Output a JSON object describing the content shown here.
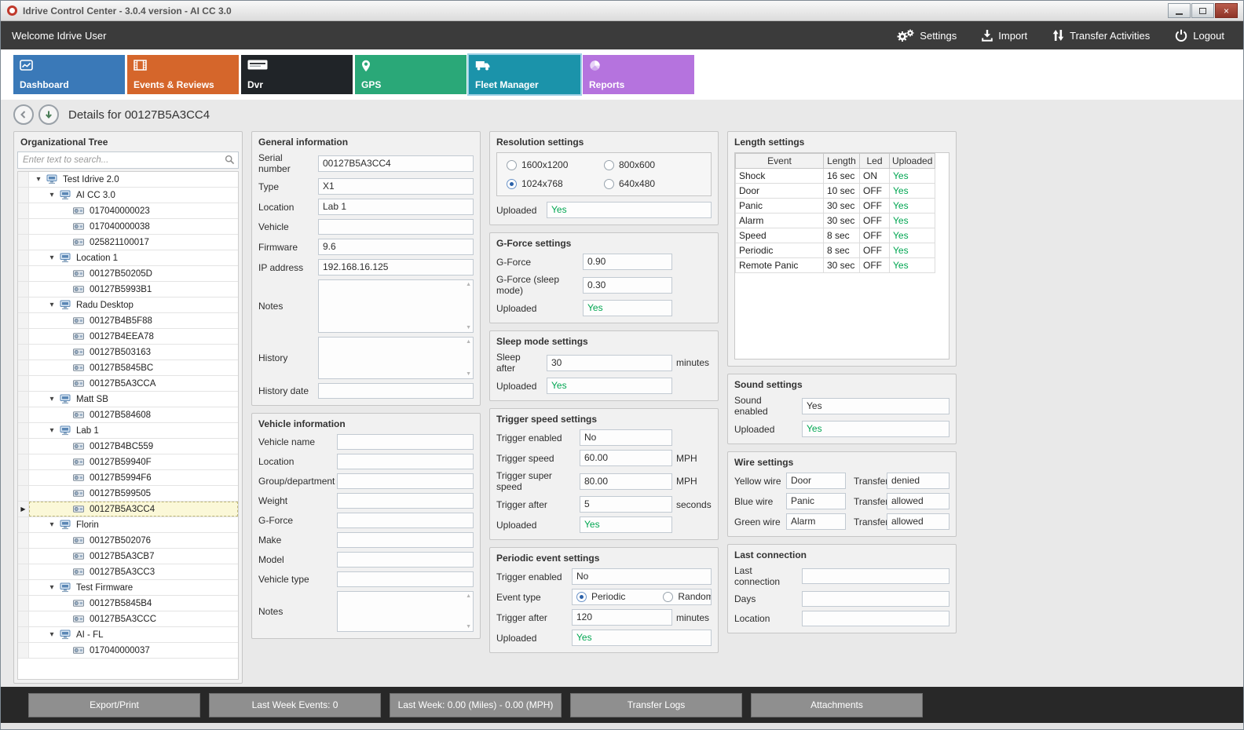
{
  "window": {
    "title": "Idrive Control Center - 3.0.4 version - AI CC 3.0"
  },
  "topbar": {
    "welcome": "Welcome Idrive User",
    "actions": [
      {
        "label": "Settings"
      },
      {
        "label": "Import"
      },
      {
        "label": "Transfer Activities"
      },
      {
        "label": "Logout"
      }
    ]
  },
  "nav": {
    "tabs": [
      {
        "label": "Dashboard",
        "color": "#3a79b8",
        "selected": false
      },
      {
        "label": "Events & Reviews",
        "color": "#d5662b",
        "selected": false
      },
      {
        "label": "Dvr",
        "color": "#202428",
        "selected": false
      },
      {
        "label": "GPS",
        "color": "#2aa878",
        "selected": false
      },
      {
        "label": "Fleet Manager",
        "color": "#1b93aa",
        "selected": true
      },
      {
        "label": "Reports",
        "color": "#b573de",
        "selected": false
      }
    ]
  },
  "details": {
    "title": "Details for 00127B5A3CC4"
  },
  "org_tree": {
    "title": "Organizational Tree",
    "search_placeholder": "Enter text to search...",
    "items": [
      {
        "label": "Test Idrive 2.0",
        "type": "group",
        "depth": 0,
        "selected": false
      },
      {
        "label": "AI CC 3.0",
        "type": "group",
        "depth": 1,
        "selected": false
      },
      {
        "label": "017040000023",
        "type": "device",
        "depth": 2,
        "selected": false
      },
      {
        "label": "017040000038",
        "type": "device",
        "depth": 2,
        "selected": false
      },
      {
        "label": "025821100017",
        "type": "device",
        "depth": 2,
        "selected": false
      },
      {
        "label": "Location 1",
        "type": "group",
        "depth": 1,
        "selected": false
      },
      {
        "label": "00127B50205D",
        "type": "device",
        "depth": 2,
        "selected": false
      },
      {
        "label": "00127B5993B1",
        "type": "device",
        "depth": 2,
        "selected": false
      },
      {
        "label": "Radu Desktop",
        "type": "group",
        "depth": 1,
        "selected": false
      },
      {
        "label": "00127B4B5F88",
        "type": "device",
        "depth": 2,
        "selected": false
      },
      {
        "label": "00127B4EEA78",
        "type": "device",
        "depth": 2,
        "selected": false
      },
      {
        "label": "00127B503163",
        "type": "device",
        "depth": 2,
        "selected": false
      },
      {
        "label": "00127B5845BC",
        "type": "device",
        "depth": 2,
        "selected": false
      },
      {
        "label": "00127B5A3CCA",
        "type": "device",
        "depth": 2,
        "selected": false
      },
      {
        "label": "Matt SB",
        "type": "group",
        "depth": 1,
        "selected": false
      },
      {
        "label": "00127B584608",
        "type": "device",
        "depth": 2,
        "selected": false
      },
      {
        "label": "Lab 1",
        "type": "group",
        "depth": 1,
        "selected": false
      },
      {
        "label": "00127B4BC559",
        "type": "device",
        "depth": 2,
        "selected": false
      },
      {
        "label": "00127B59940F",
        "type": "device",
        "depth": 2,
        "selected": false
      },
      {
        "label": "00127B5994F6",
        "type": "device",
        "depth": 2,
        "selected": false
      },
      {
        "label": "00127B599505",
        "type": "device",
        "depth": 2,
        "selected": false
      },
      {
        "label": "00127B5A3CC4",
        "type": "device",
        "depth": 2,
        "selected": true
      },
      {
        "label": "Florin",
        "type": "group",
        "depth": 1,
        "selected": false
      },
      {
        "label": "00127B502076",
        "type": "device",
        "depth": 2,
        "selected": false
      },
      {
        "label": "00127B5A3CB7",
        "type": "device",
        "depth": 2,
        "selected": false
      },
      {
        "label": "00127B5A3CC3",
        "type": "device",
        "depth": 2,
        "selected": false
      },
      {
        "label": "Test Firmware",
        "type": "group",
        "depth": 1,
        "selected": false
      },
      {
        "label": "00127B5845B4",
        "type": "device",
        "depth": 2,
        "selected": false
      },
      {
        "label": "00127B5A3CCC",
        "type": "device",
        "depth": 2,
        "selected": false
      },
      {
        "label": "AI - FL",
        "type": "group",
        "depth": 1,
        "selected": false
      },
      {
        "label": "017040000037",
        "type": "device",
        "depth": 2,
        "selected": false
      }
    ]
  },
  "general_information": {
    "title": "General information",
    "serial_number": {
      "label": "Serial number",
      "value": "00127B5A3CC4"
    },
    "type": {
      "label": "Type",
      "value": "X1"
    },
    "location": {
      "label": "Location",
      "value": "Lab 1"
    },
    "vehicle": {
      "label": "Vehicle",
      "value": ""
    },
    "firmware": {
      "label": "Firmware",
      "value": "9.6"
    },
    "ip_address": {
      "label": "IP address",
      "value": "192.168.16.125"
    },
    "notes": {
      "label": "Notes",
      "value": ""
    },
    "history": {
      "label": "History",
      "value": ""
    },
    "history_date": {
      "label": "History date",
      "value": ""
    }
  },
  "vehicle_information": {
    "title": "Vehicle information",
    "vehicle_name": {
      "label": "Vehicle name",
      "value": ""
    },
    "location": {
      "label": "Location",
      "value": ""
    },
    "group_department": {
      "label": "Group/department",
      "value": ""
    },
    "weight": {
      "label": "Weight",
      "value": ""
    },
    "g_force": {
      "label": "G-Force",
      "value": ""
    },
    "make": {
      "label": "Make",
      "value": ""
    },
    "model": {
      "label": "Model",
      "value": ""
    },
    "vehicle_type": {
      "label": "Vehicle type",
      "value": ""
    },
    "notes": {
      "label": "Notes",
      "value": ""
    }
  },
  "resolution_settings": {
    "title": "Resolution settings",
    "options": [
      {
        "label": "1600x1200",
        "selected": false
      },
      {
        "label": "800x600",
        "selected": false
      },
      {
        "label": "1024x768",
        "selected": true
      },
      {
        "label": "640x480",
        "selected": false
      }
    ],
    "uploaded": {
      "label": "Uploaded",
      "value": "Yes"
    }
  },
  "gforce_settings": {
    "title": "G-Force settings",
    "g_force": {
      "label": "G-Force",
      "value": "0.90"
    },
    "g_force_sleep": {
      "label": "G-Force (sleep mode)",
      "value": "0.30"
    },
    "uploaded": {
      "label": "Uploaded",
      "value": "Yes"
    }
  },
  "sleep_mode_settings": {
    "title": "Sleep mode settings",
    "sleep_after": {
      "label": "Sleep after",
      "value": "30",
      "suffix": "minutes"
    },
    "uploaded": {
      "label": "Uploaded",
      "value": "Yes"
    }
  },
  "trigger_speed_settings": {
    "title": "Trigger speed settings",
    "trigger_enabled": {
      "label": "Trigger enabled",
      "value": "No"
    },
    "trigger_speed": {
      "label": "Trigger speed",
      "value": "60.00",
      "suffix": "MPH"
    },
    "trigger_super_speed": {
      "label": "Trigger super speed",
      "value": "80.00",
      "suffix": "MPH"
    },
    "trigger_after": {
      "label": "Trigger after",
      "value": "5",
      "suffix": "seconds"
    },
    "uploaded": {
      "label": "Uploaded",
      "value": "Yes"
    }
  },
  "periodic_event_settings": {
    "title": "Periodic event settings",
    "trigger_enabled": {
      "label": "Trigger enabled",
      "value": "No"
    },
    "event_type": {
      "label": "Event type",
      "options": [
        {
          "label": "Periodic",
          "selected": true
        },
        {
          "label": "Random",
          "selected": false
        }
      ]
    },
    "trigger_after": {
      "label": "Trigger after",
      "value": "120",
      "suffix": "minutes"
    },
    "uploaded": {
      "label": "Uploaded",
      "value": "Yes"
    }
  },
  "length_settings": {
    "title": "Length settings",
    "table": {
      "columns": [
        "Event",
        "Length",
        "Led",
        "Uploaded"
      ],
      "rows": [
        [
          "Shock",
          "16 sec",
          "ON",
          "Yes"
        ],
        [
          "Door",
          "10 sec",
          "OFF",
          "Yes"
        ],
        [
          "Panic",
          "30 sec",
          "OFF",
          "Yes"
        ],
        [
          "Alarm",
          "30 sec",
          "OFF",
          "Yes"
        ],
        [
          "Speed",
          "8 sec",
          "OFF",
          "Yes"
        ],
        [
          "Periodic",
          "8 sec",
          "OFF",
          "Yes"
        ],
        [
          "Remote Panic",
          "30 sec",
          "OFF",
          "Yes"
        ]
      ]
    }
  },
  "sound_settings": {
    "title": "Sound settings",
    "sound_enabled": {
      "label": "Sound enabled",
      "value": "Yes"
    },
    "uploaded": {
      "label": "Uploaded",
      "value": "Yes"
    }
  },
  "wire_settings": {
    "title": "Wire settings",
    "rows": [
      {
        "wire_label": "Yellow wire",
        "wire_value": "Door",
        "transfer_label": "Transfer",
        "transfer_value": "denied"
      },
      {
        "wire_label": "Blue wire",
        "wire_value": "Panic",
        "transfer_label": "Transfer",
        "transfer_value": "allowed"
      },
      {
        "wire_label": "Green wire",
        "wire_value": "Alarm",
        "transfer_label": "Transfer",
        "transfer_value": "allowed"
      }
    ]
  },
  "last_connection": {
    "title": "Last connection",
    "last_connection": {
      "label": "Last connection",
      "value": ""
    },
    "days": {
      "label": "Days",
      "value": ""
    },
    "location": {
      "label": "Location",
      "value": ""
    }
  },
  "bottom_bar": {
    "buttons": [
      {
        "name": "export-print-button",
        "label": "Export/Print"
      },
      {
        "name": "last-week-events-button",
        "label": "Last Week Events: 0"
      },
      {
        "name": "last-week-stats-button",
        "label": "Last Week: 0.00 (Miles) - 0.00 (MPH)"
      },
      {
        "name": "transfer-logs-button",
        "label": "Transfer Logs"
      },
      {
        "name": "attachments-button",
        "label": "Attachments"
      }
    ]
  },
  "colors": {
    "uploaded_yes": "#00a651",
    "selected_tab_border": "#9ed1e6"
  }
}
